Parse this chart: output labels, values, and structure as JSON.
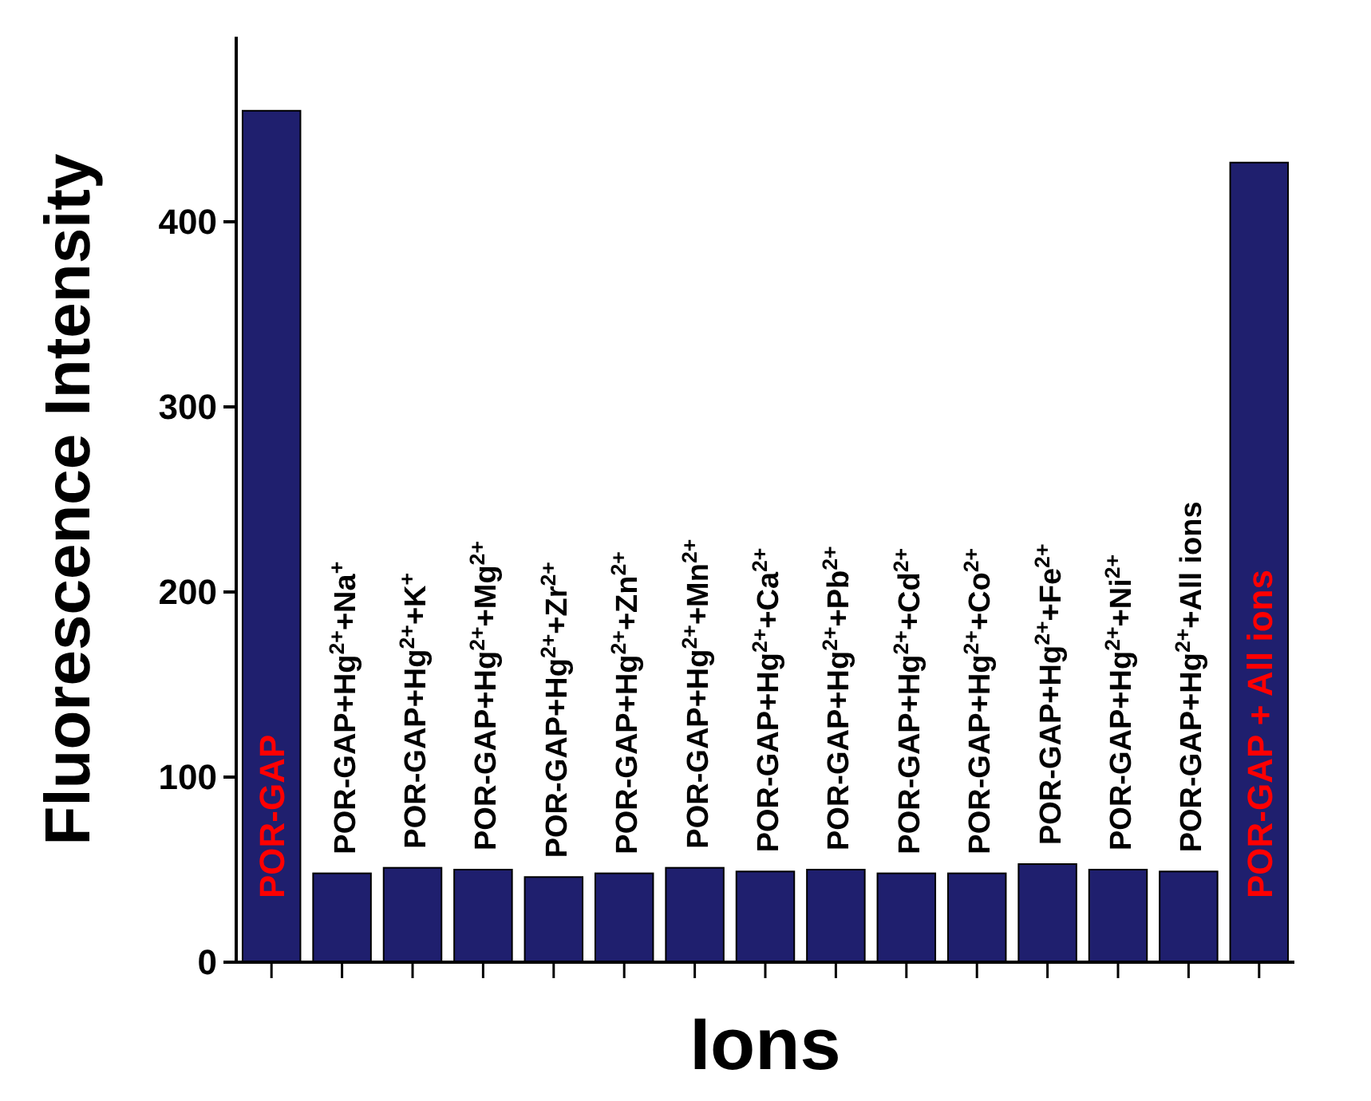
{
  "chart_data": {
    "type": "bar",
    "xlabel": "Ions",
    "ylabel": "Fluorescence Intensity",
    "categories": [
      "POR-GAP",
      "POR-GAP+Hg$^{2+}$+Na$^{+}$",
      "POR-GAP+Hg$^{2+}$+K$^{+}$",
      "POR-GAP+Hg$^{2+}$+Mg$^{2+}$",
      "POR-GAP+Hg$^{2+}$+Zr$^{2+}$",
      "POR-GAP+Hg$^{2+}$+Zn$^{2+}$",
      "POR-GAP+Hg$^{2+}$+Mn$^{2+}$",
      "POR-GAP+Hg$^{2+}$+Ca$^{2+}$",
      "POR-GAP+Hg$^{2+}$+Pb$^{2+}$",
      "POR-GAP+Hg$^{2+}$+Cd$^{2+}$",
      "POR-GAP+Hg$^{2+}$+Co$^{2+}$",
      "POR-GAP+Hg$^{2+}$+Fe$^{2+}$",
      "POR-GAP+Hg$^{2+}$+Ni$^{2+}$",
      "POR-GAP+Hg$^{2+}$+All ions",
      "POR-GAP + All ions"
    ],
    "values": [
      460,
      48,
      51,
      50,
      46,
      48,
      51,
      49,
      50,
      48,
      48,
      53,
      50,
      49,
      432
    ],
    "color": "#1f1f6e",
    "ylim": [
      0,
      500
    ],
    "yticks": [
      0,
      100,
      200,
      300,
      400
    ]
  }
}
